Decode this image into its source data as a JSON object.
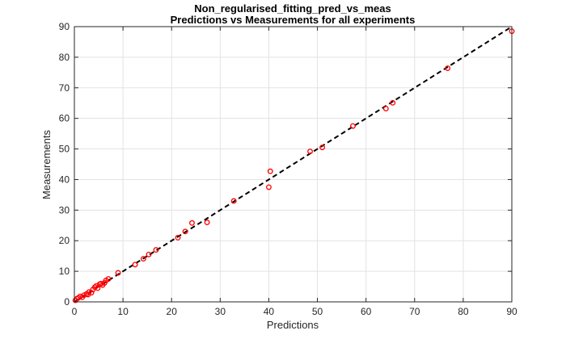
{
  "chart_data": {
    "type": "scatter",
    "title_line1": "Non_regularised_fitting_pred_vs_meas",
    "title_line2": "Predictions vs Measurements for all experiments",
    "xlabel": "Predictions",
    "ylabel": "Measurements",
    "xlim": [
      0,
      90
    ],
    "ylim": [
      0,
      90
    ],
    "xticks": [
      "0",
      "10",
      "20",
      "30",
      "40",
      "50",
      "60",
      "70",
      "80",
      "90"
    ],
    "yticks": [
      "0",
      "10",
      "20",
      "30",
      "40",
      "50",
      "60",
      "70",
      "80",
      "90"
    ],
    "grid": true,
    "legend": "none",
    "reference_line": {
      "style": "dashed",
      "color": "#000000",
      "from": [
        0,
        0
      ],
      "to": [
        90,
        90
      ]
    },
    "series": [
      {
        "marker": "open-circle",
        "color": "#ff0000",
        "points": [
          [
            0.2,
            0.5
          ],
          [
            0.5,
            1.0
          ],
          [
            0.8,
            1.3
          ],
          [
            1.2,
            1.8
          ],
          [
            1.6,
            1.5
          ],
          [
            2.0,
            2.2
          ],
          [
            2.5,
            2.6
          ],
          [
            2.8,
            2.4
          ],
          [
            3.0,
            3.2
          ],
          [
            3.5,
            3.0
          ],
          [
            3.8,
            4.0
          ],
          [
            4.2,
            4.8
          ],
          [
            4.5,
            5.2
          ],
          [
            4.8,
            4.5
          ],
          [
            5.2,
            5.8
          ],
          [
            5.5,
            6.0
          ],
          [
            5.8,
            5.5
          ],
          [
            6.2,
            6.2
          ],
          [
            6.5,
            7.0
          ],
          [
            7.0,
            7.5
          ],
          [
            9.0,
            9.5
          ],
          [
            12.5,
            12.2
          ],
          [
            14.2,
            14.1
          ],
          [
            15.3,
            15.5
          ],
          [
            16.8,
            17.0
          ],
          [
            21.3,
            21.0
          ],
          [
            22.8,
            23.0
          ],
          [
            24.2,
            25.8
          ],
          [
            27.3,
            26.0
          ],
          [
            32.8,
            33.0
          ],
          [
            40.0,
            37.5
          ],
          [
            40.3,
            42.7
          ],
          [
            48.5,
            49.2
          ],
          [
            51.0,
            50.5
          ],
          [
            57.3,
            57.5
          ],
          [
            64.1,
            63.2
          ],
          [
            65.5,
            65.1
          ],
          [
            76.8,
            76.4
          ],
          [
            90.0,
            88.5
          ]
        ]
      }
    ]
  }
}
